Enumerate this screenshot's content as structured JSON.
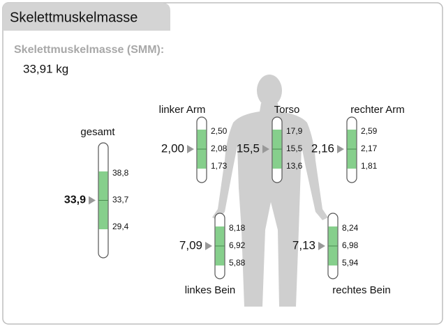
{
  "header": {
    "title": "Skelettmuskelmasse"
  },
  "summary": {
    "label": "Skelettmuskelmasse (SMM):",
    "value": "33,91 kg"
  },
  "segments": [
    {
      "label": "gesamt",
      "value": "33,9",
      "upper": "38,8",
      "middle": "33,7",
      "lower": "29,4"
    },
    {
      "label": "linker Arm",
      "value": "2,00",
      "upper": "2,50",
      "middle": "2,08",
      "lower": "1,73"
    },
    {
      "label": "Torso",
      "value": "15,5",
      "upper": "17,9",
      "middle": "15,5",
      "lower": "13,6"
    },
    {
      "label": "rechter Arm",
      "value": "2,16",
      "upper": "2,59",
      "middle": "2,17",
      "lower": "1,81"
    },
    {
      "label": "linkes Bein",
      "value": "7,09",
      "upper": "8,18",
      "middle": "6,92",
      "lower": "5,88"
    },
    {
      "label": "rechtes Bein",
      "value": "7,13",
      "upper": "8,24",
      "middle": "6,98",
      "lower": "5,94"
    }
  ]
}
